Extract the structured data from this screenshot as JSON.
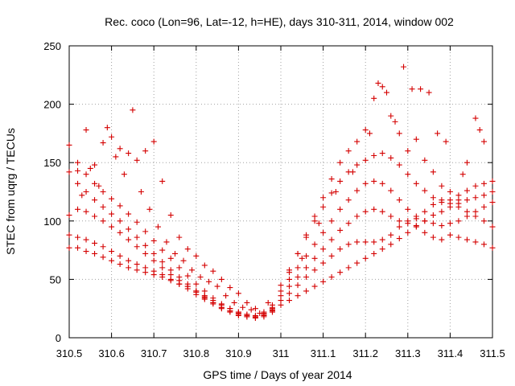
{
  "chart_data": {
    "type": "scatter",
    "title": "Rec. coco (Lon=96, Lat=-12, h=HE), days 310-311, 2014, window 002",
    "xlabel": "GPS time / Days of year 2014",
    "ylabel": "STEC from uqrg / TECUs",
    "xlim": [
      310.5,
      311.5
    ],
    "ylim": [
      0,
      250
    ],
    "xticks": [
      310.5,
      310.6,
      310.7,
      310.8,
      310.9,
      311.0,
      311.1,
      311.2,
      311.3,
      311.4,
      311.5
    ],
    "xtick_labels": [
      "310.5",
      "310.6",
      "310.7",
      "310.8",
      "310.9",
      "311",
      "311.1",
      "311.2",
      "311.3",
      "311.4",
      "311.5"
    ],
    "yticks": [
      0,
      50,
      100,
      150,
      200,
      250
    ],
    "ytick_labels": [
      "0",
      "50",
      "100",
      "150",
      "200",
      "250"
    ],
    "grid": true,
    "marker": "+",
    "color": "#d40000",
    "series": [
      {
        "x": [
          310.5,
          310.52,
          310.54,
          310.56,
          310.58,
          310.6,
          310.62,
          310.64,
          310.66,
          310.68,
          310.7,
          310.72,
          310.74,
          310.76,
          310.78,
          310.8,
          310.82,
          310.84,
          310.86,
          310.88,
          310.9,
          310.92,
          310.94,
          310.96,
          310.98
        ],
        "y": [
          77,
          77,
          74,
          72,
          69,
          66,
          63,
          60,
          58,
          56,
          54,
          52,
          49,
          46,
          44,
          40,
          36,
          32,
          28,
          25,
          22,
          20,
          19,
          21,
          26
        ]
      },
      {
        "x": [
          310.5,
          310.52,
          310.54,
          310.56,
          310.58,
          310.6,
          310.62,
          310.64,
          310.66,
          310.68,
          310.7,
          310.72,
          310.74,
          310.76,
          310.78,
          310.8,
          310.82,
          310.84,
          310.86,
          310.88,
          310.9,
          310.92,
          310.94,
          310.96,
          310.98
        ],
        "y": [
          88,
          86,
          84,
          81,
          78,
          74,
          70,
          66,
          63,
          60,
          57,
          54,
          50,
          46,
          42,
          37,
          33,
          29,
          25,
          22,
          19,
          18,
          17,
          19,
          23
        ]
      },
      {
        "x": [
          310.5,
          310.52,
          310.54,
          310.56,
          310.58,
          310.6,
          310.62,
          310.64,
          310.66,
          310.68,
          310.7,
          310.72,
          310.74,
          310.76,
          310.78,
          310.8,
          310.82,
          310.84,
          310.86,
          310.88,
          310.9,
          310.92,
          310.94,
          310.96,
          310.98
        ],
        "y": [
          105,
          110,
          108,
          104,
          100,
          95,
          90,
          84,
          78,
          72,
          66,
          60,
          54,
          49,
          44,
          39,
          34,
          30,
          26,
          23,
          20,
          18,
          17,
          18,
          22
        ]
      },
      {
        "x": [
          310.5,
          310.52,
          310.54,
          310.56,
          310.58,
          310.6,
          310.62,
          310.64,
          310.66,
          310.68,
          310.7,
          310.72,
          310.74,
          310.76,
          310.78,
          310.8,
          310.82,
          310.84,
          310.86,
          310.88,
          310.9,
          310.92,
          310.94,
          310.96,
          310.98
        ],
        "y": [
          142,
          132,
          125,
          118,
          112,
          106,
          100,
          93,
          86,
          79,
          72,
          65,
          58,
          52,
          46,
          40,
          35,
          30,
          26,
          23,
          21,
          19,
          18,
          19,
          24
        ]
      },
      {
        "x": [
          310.5,
          310.52,
          310.54,
          310.56,
          310.58,
          310.6,
          310.62,
          310.64,
          310.66,
          310.68,
          310.7,
          310.72,
          310.74,
          310.76,
          310.78,
          310.8,
          310.82,
          310.84,
          310.86,
          310.88,
          310.9,
          310.92,
          310.94,
          310.96,
          310.98
        ],
        "y": [
          165,
          150,
          140,
          132,
          125,
          119,
          113,
          106,
          99,
          91,
          83,
          75,
          68,
          60,
          53,
          46,
          40,
          34,
          29,
          25,
          22,
          20,
          18,
          20,
          25
        ]
      },
      {
        "x": [
          310.52,
          310.54,
          310.56,
          310.58,
          310.6,
          310.62,
          310.64,
          310.66,
          310.68,
          310.7,
          310.72,
          310.74,
          310.76,
          310.78,
          310.8,
          310.82,
          310.84,
          310.86,
          310.88,
          310.9,
          310.92,
          310.94,
          310.96,
          310.98
        ],
        "y": [
          143,
          178,
          148,
          167,
          172,
          162,
          158,
          152,
          160,
          168,
          134,
          105,
          86,
          76,
          70,
          62,
          57,
          50,
          43,
          38,
          30,
          25,
          22,
          28
        ]
      },
      {
        "x": [
          310.53,
          310.55,
          310.57,
          310.59,
          310.61,
          310.63,
          310.65,
          310.67,
          310.69,
          310.71,
          310.73,
          310.75,
          310.77,
          310.79,
          310.81,
          310.83,
          310.85,
          310.87,
          310.89,
          310.91,
          310.93,
          310.95,
          310.97
        ],
        "y": [
          122,
          145,
          130,
          180,
          155,
          140,
          195,
          125,
          110,
          95,
          82,
          72,
          66,
          58,
          52,
          48,
          44,
          36,
          30,
          26,
          24,
          21,
          30
        ]
      },
      {
        "x": [
          311.0,
          311.02,
          311.04,
          311.06,
          311.08,
          311.1,
          311.12,
          311.14,
          311.16,
          311.18,
          311.2,
          311.22,
          311.24,
          311.26,
          311.28,
          311.3,
          311.32,
          311.34,
          311.36,
          311.38,
          311.4,
          311.42,
          311.44,
          311.46,
          311.48,
          311.5
        ],
        "y": [
          28,
          32,
          36,
          40,
          44,
          48,
          52,
          56,
          60,
          64,
          68,
          72,
          76,
          80,
          85,
          90,
          95,
          100,
          105,
          108,
          112,
          115,
          118,
          120,
          122,
          125
        ]
      },
      {
        "x": [
          311.0,
          311.02,
          311.04,
          311.06,
          311.08,
          311.1,
          311.12,
          311.14,
          311.16,
          311.18,
          311.2,
          311.22,
          311.24,
          311.26,
          311.28,
          311.3,
          311.32,
          311.34,
          311.36,
          311.38,
          311.4,
          311.42,
          311.44,
          311.46,
          311.48,
          311.5
        ],
        "y": [
          32,
          38,
          45,
          52,
          58,
          64,
          70,
          76,
          80,
          82,
          82,
          82,
          84,
          88,
          95,
          100,
          96,
          90,
          86,
          84,
          88,
          86,
          84,
          82,
          80,
          77
        ]
      },
      {
        "x": [
          311.0,
          311.02,
          311.04,
          311.06,
          311.08,
          311.1,
          311.12,
          311.14,
          311.16,
          311.18,
          311.2,
          311.22,
          311.24,
          311.26,
          311.28,
          311.3,
          311.32,
          311.34,
          311.36,
          311.38,
          311.4,
          311.42,
          311.44,
          311.46,
          311.48,
          311.5
        ],
        "y": [
          36,
          44,
          52,
          60,
          68,
          76,
          84,
          92,
          98,
          104,
          108,
          110,
          108,
          104,
          100,
          98,
          102,
          108,
          114,
          118,
          115,
          112,
          108,
          104,
          100,
          95
        ]
      },
      {
        "x": [
          311.0,
          311.02,
          311.04,
          311.06,
          311.08,
          311.1,
          311.12,
          311.14,
          311.16,
          311.18,
          311.2,
          311.22,
          311.24,
          311.26,
          311.28,
          311.3,
          311.32,
          311.34,
          311.36,
          311.38,
          311.4,
          311.42,
          311.44,
          311.46,
          311.48,
          311.5
        ],
        "y": [
          40,
          50,
          60,
          70,
          80,
          90,
          100,
          110,
          118,
          126,
          132,
          134,
          132,
          126,
          118,
          110,
          104,
          100,
          98,
          96,
          98,
          100,
          104,
          108,
          112,
          116
        ]
      },
      {
        "x": [
          311.0,
          311.02,
          311.04,
          311.06,
          311.08,
          311.1,
          311.12,
          311.14,
          311.16,
          311.18,
          311.2,
          311.22,
          311.24,
          311.26,
          311.28,
          311.3,
          311.32,
          311.34,
          311.36,
          311.38,
          311.4,
          311.42,
          311.44,
          311.46,
          311.48,
          311.5
        ],
        "y": [
          45,
          58,
          72,
          86,
          100,
          112,
          124,
          134,
          142,
          148,
          152,
          156,
          158,
          154,
          148,
          140,
          132,
          126,
          120,
          116,
          118,
          122,
          126,
          130,
          132,
          134
        ]
      },
      {
        "x": [
          311.02,
          311.04,
          311.06,
          311.08,
          311.1,
          311.12,
          311.14,
          311.16,
          311.18,
          311.2,
          311.22,
          311.24,
          311.26,
          311.28,
          311.3,
          311.32,
          311.34,
          311.36,
          311.38,
          311.4,
          311.42,
          311.44,
          311.46,
          311.48
        ],
        "y": [
          56,
          72,
          88,
          104,
          120,
          136,
          150,
          160,
          168,
          178,
          205,
          215,
          190,
          175,
          160,
          170,
          152,
          142,
          130,
          125,
          118,
          150,
          188,
          168
        ]
      },
      {
        "x": [
          311.05,
          311.09,
          311.13,
          311.17,
          311.21,
          311.23,
          311.25,
          311.27,
          311.29,
          311.31,
          311.33,
          311.35,
          311.37,
          311.39,
          311.43,
          311.47
        ],
        "y": [
          68,
          98,
          125,
          142,
          175,
          218,
          210,
          185,
          232,
          213,
          213,
          210,
          175,
          168,
          140,
          178
        ]
      }
    ]
  }
}
